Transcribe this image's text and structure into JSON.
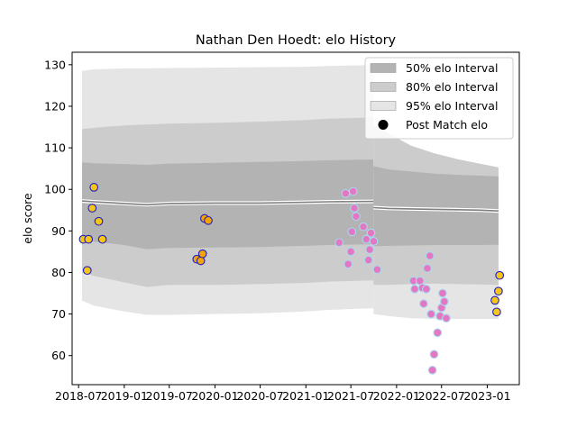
{
  "chart_data": {
    "type": "scatter",
    "title": "Nathan Den Hoedt: elo History",
    "xlabel": "",
    "ylabel": "elo score",
    "xlim": [
      "2018-06-05",
      "2023-05-10"
    ],
    "ylim": [
      53,
      133
    ],
    "x_ticks": [
      "2018-07",
      "2019-01",
      "2019-07",
      "2020-01",
      "2020-07",
      "2021-01",
      "2021-07",
      "2022-01",
      "2022-07",
      "2023-01"
    ],
    "y_ticks": [
      60,
      70,
      80,
      90,
      100,
      110,
      120,
      130
    ],
    "grid": false,
    "legend_position": "top-right",
    "colors": {
      "band_50": "#b3b3b3",
      "band_80": "#cccccc",
      "band_95": "#e5e5e5",
      "mean_line": "#808080",
      "legend_marker": "#000000",
      "marker_edge_blue": "#1f1fbf",
      "marker_edge_cyan": "#a8d8f0",
      "marker_fill_yellow": "#f5c518",
      "marker_fill_orange": "#f5a300",
      "marker_fill_pink": "#e377c2"
    },
    "legend": [
      {
        "label": "50% elo Interval",
        "kind": "band_50"
      },
      {
        "label": "80% elo Interval",
        "kind": "band_80"
      },
      {
        "label": "95% elo Interval",
        "kind": "band_95"
      },
      {
        "label": "Post Match elo",
        "kind": "marker"
      }
    ],
    "bands": {
      "segments": [
        {
          "dates": [
            "2018-07-15",
            "2018-09-01",
            "2019-01-01",
            "2019-04-01",
            "2019-07-01",
            "2020-01-01",
            "2020-07-01",
            "2021-01-01",
            "2021-04-01",
            "2021-09-30"
          ],
          "mean": [
            97.2,
            97.0,
            96.6,
            96.3,
            96.6,
            96.7,
            96.7,
            96.9,
            97.0,
            97.1
          ],
          "p50_lo": [
            87.8,
            87.4,
            86.6,
            85.6,
            85.9,
            86.0,
            86.1,
            86.4,
            86.6,
            86.8
          ],
          "p50_hi": [
            106.5,
            106.3,
            106.1,
            105.9,
            106.2,
            106.4,
            106.6,
            106.8,
            107.0,
            107.2
          ],
          "p80_lo": [
            80.0,
            79.2,
            77.6,
            76.5,
            77.0,
            77.0,
            77.2,
            77.5,
            77.8,
            78.1
          ],
          "p80_hi": [
            114.5,
            114.8,
            115.4,
            115.6,
            115.8,
            116.0,
            116.3,
            116.7,
            117.0,
            117.3
          ],
          "p95_lo": [
            73.2,
            72.0,
            70.6,
            69.8,
            69.8,
            70.0,
            70.2,
            70.6,
            71.0,
            71.4
          ],
          "p95_hi": [
            128.5,
            128.9,
            129.1,
            129.1,
            129.2,
            129.3,
            129.4,
            129.5,
            129.7,
            129.9
          ]
        },
        {
          "dates": [
            "2021-09-30",
            "2021-12-01",
            "2022-03-01",
            "2022-06-01",
            "2022-09-01",
            "2022-12-01",
            "2023-02-15"
          ],
          "mean": [
            95.6,
            95.4,
            95.3,
            95.2,
            95.1,
            95.0,
            94.8
          ],
          "p50_lo": [
            86.3,
            86.4,
            86.5,
            86.6,
            86.6,
            86.6,
            86.7
          ],
          "p50_hi": [
            105.6,
            104.8,
            104.3,
            103.8,
            103.5,
            103.3,
            103.1
          ],
          "p80_lo": [
            77.0,
            77.0,
            77.2,
            77.3,
            77.2,
            77.1,
            77.0
          ],
          "p80_hi": [
            115.6,
            113.4,
            110.5,
            108.7,
            107.3,
            106.2,
            105.3
          ],
          "p95_lo": [
            70.0,
            69.5,
            69.0,
            68.8,
            68.8,
            68.8,
            68.8
          ],
          "p95_hi": [
            115.6,
            113.2,
            110.1,
            108.3,
            106.9,
            105.7,
            104.7
          ]
        }
      ]
    },
    "series": [
      {
        "group": "2018",
        "points": [
          {
            "x": "2018-07-20",
            "y": 88.0
          },
          {
            "x": "2018-08-05",
            "y": 80.5
          },
          {
            "x": "2018-08-10",
            "y": 88.0
          },
          {
            "x": "2018-08-25",
            "y": 95.5
          },
          {
            "x": "2018-09-01",
            "y": 100.5
          },
          {
            "x": "2018-09-20",
            "y": 92.3
          },
          {
            "x": "2018-10-05",
            "y": 88.0
          }
        ]
      },
      {
        "group": "2019",
        "points": [
          {
            "x": "2019-10-20",
            "y": 83.2
          },
          {
            "x": "2019-11-05",
            "y": 82.8
          },
          {
            "x": "2019-11-12",
            "y": 84.5
          },
          {
            "x": "2019-11-20",
            "y": 93.0
          },
          {
            "x": "2019-12-05",
            "y": 92.5
          }
        ]
      },
      {
        "group": "2021",
        "points": [
          {
            "x": "2021-05-15",
            "y": 87.2
          },
          {
            "x": "2021-06-10",
            "y": 99.0
          },
          {
            "x": "2021-06-20",
            "y": 82.0
          },
          {
            "x": "2021-07-01",
            "y": 85.0
          },
          {
            "x": "2021-07-05",
            "y": 89.8
          },
          {
            "x": "2021-07-10",
            "y": 99.5
          },
          {
            "x": "2021-07-15",
            "y": 95.5
          },
          {
            "x": "2021-07-22",
            "y": 93.5
          },
          {
            "x": "2021-08-20",
            "y": 91.0
          },
          {
            "x": "2021-09-01",
            "y": 88.0
          },
          {
            "x": "2021-09-10",
            "y": 83.0
          },
          {
            "x": "2021-09-15",
            "y": 85.5
          },
          {
            "x": "2021-09-20",
            "y": 89.5
          },
          {
            "x": "2021-10-01",
            "y": 87.5
          },
          {
            "x": "2021-10-15",
            "y": 80.7
          }
        ]
      },
      {
        "group": "2022",
        "points": [
          {
            "x": "2022-03-10",
            "y": 78.0
          },
          {
            "x": "2022-03-15",
            "y": 76.0
          },
          {
            "x": "2022-04-05",
            "y": 78.0
          },
          {
            "x": "2022-04-15",
            "y": 76.3
          },
          {
            "x": "2022-04-20",
            "y": 72.5
          },
          {
            "x": "2022-05-01",
            "y": 76.0
          },
          {
            "x": "2022-05-05",
            "y": 81.0
          },
          {
            "x": "2022-05-15",
            "y": 84.0
          },
          {
            "x": "2022-05-20",
            "y": 70.0
          },
          {
            "x": "2022-05-25",
            "y": 56.5
          },
          {
            "x": "2022-06-01",
            "y": 60.3
          },
          {
            "x": "2022-06-15",
            "y": 65.5
          },
          {
            "x": "2022-06-25",
            "y": 69.5
          },
          {
            "x": "2022-07-01",
            "y": 71.5
          },
          {
            "x": "2022-07-05",
            "y": 75.0
          },
          {
            "x": "2022-07-12",
            "y": 73.0
          },
          {
            "x": "2022-07-20",
            "y": 69.0
          }
        ]
      },
      {
        "group": "2023",
        "points": [
          {
            "x": "2023-02-01",
            "y": 73.3
          },
          {
            "x": "2023-02-08",
            "y": 70.5
          },
          {
            "x": "2023-02-15",
            "y": 75.5
          },
          {
            "x": "2023-02-20",
            "y": 79.3
          }
        ]
      }
    ],
    "series_styles": {
      "2018": {
        "fill": "marker_fill_yellow",
        "edge": "marker_edge_blue"
      },
      "2019": {
        "fill": "marker_fill_orange",
        "edge": "marker_edge_blue"
      },
      "2021": {
        "fill": "marker_fill_pink",
        "edge": "marker_edge_cyan"
      },
      "2022": {
        "fill": "marker_fill_pink",
        "edge": "marker_edge_cyan"
      },
      "2023": {
        "fill": "marker_fill_yellow",
        "edge": "marker_edge_blue"
      }
    }
  }
}
